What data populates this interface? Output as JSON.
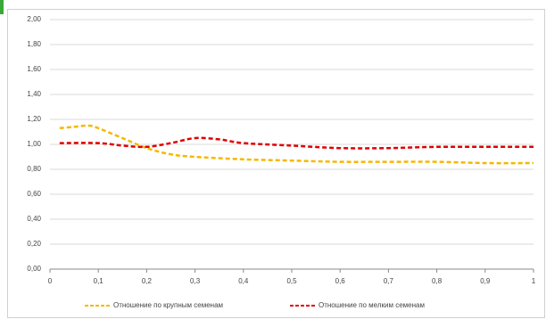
{
  "chart_data": {
    "type": "line",
    "series": [
      {
        "name": "Отношение по крупным семенам",
        "color": "#f5b800",
        "x": [
          0.02,
          0.05,
          0.08,
          0.1,
          0.15,
          0.2,
          0.25,
          0.3,
          0.4,
          0.5,
          0.6,
          0.7,
          0.8,
          0.9,
          1.0
        ],
        "values": [
          1.13,
          1.14,
          1.15,
          1.13,
          1.05,
          0.97,
          0.92,
          0.9,
          0.88,
          0.87,
          0.86,
          0.86,
          0.86,
          0.85,
          0.85
        ]
      },
      {
        "name": "Отношение по мелким семенам",
        "color": "#e00000",
        "x": [
          0.02,
          0.1,
          0.15,
          0.2,
          0.25,
          0.3,
          0.35,
          0.4,
          0.5,
          0.6,
          0.7,
          0.8,
          0.9,
          1.0
        ],
        "values": [
          1.01,
          1.01,
          0.99,
          0.98,
          1.01,
          1.05,
          1.04,
          1.01,
          0.99,
          0.97,
          0.97,
          0.98,
          0.98,
          0.98
        ]
      }
    ],
    "xlim": [
      0,
      1
    ],
    "xticks": [
      0,
      {
        "value": 0.1,
        "label": "0,1"
      },
      {
        "value": 0.2,
        "label": "0,2"
      },
      {
        "value": 0.3,
        "label": "0,3"
      },
      {
        "value": 0.4,
        "label": "0,4"
      },
      {
        "value": 0.5,
        "label": "0,5"
      },
      {
        "value": 0.6,
        "label": "0,6"
      },
      {
        "value": 0.7,
        "label": "0,7"
      },
      {
        "value": 0.8,
        "label": "0,8"
      },
      {
        "value": 0.9,
        "label": "0,9"
      },
      1
    ],
    "ylim": [
      0,
      2
    ],
    "yticks": [
      {
        "value": 0,
        "label": "0,00"
      },
      {
        "value": 0.2,
        "label": "0,20"
      },
      {
        "value": 0.4,
        "label": "0,40"
      },
      {
        "value": 0.6,
        "label": "0,60"
      },
      {
        "value": 0.8,
        "label": "0,80"
      },
      {
        "value": 1.0,
        "label": "1,00"
      },
      {
        "value": 1.2,
        "label": "1,20"
      },
      {
        "value": 1.4,
        "label": "1,40"
      },
      {
        "value": 1.6,
        "label": "1,60"
      },
      {
        "value": 1.8,
        "label": "1,80"
      },
      {
        "value": 2.0,
        "label": "2,00"
      }
    ],
    "grid": true
  }
}
